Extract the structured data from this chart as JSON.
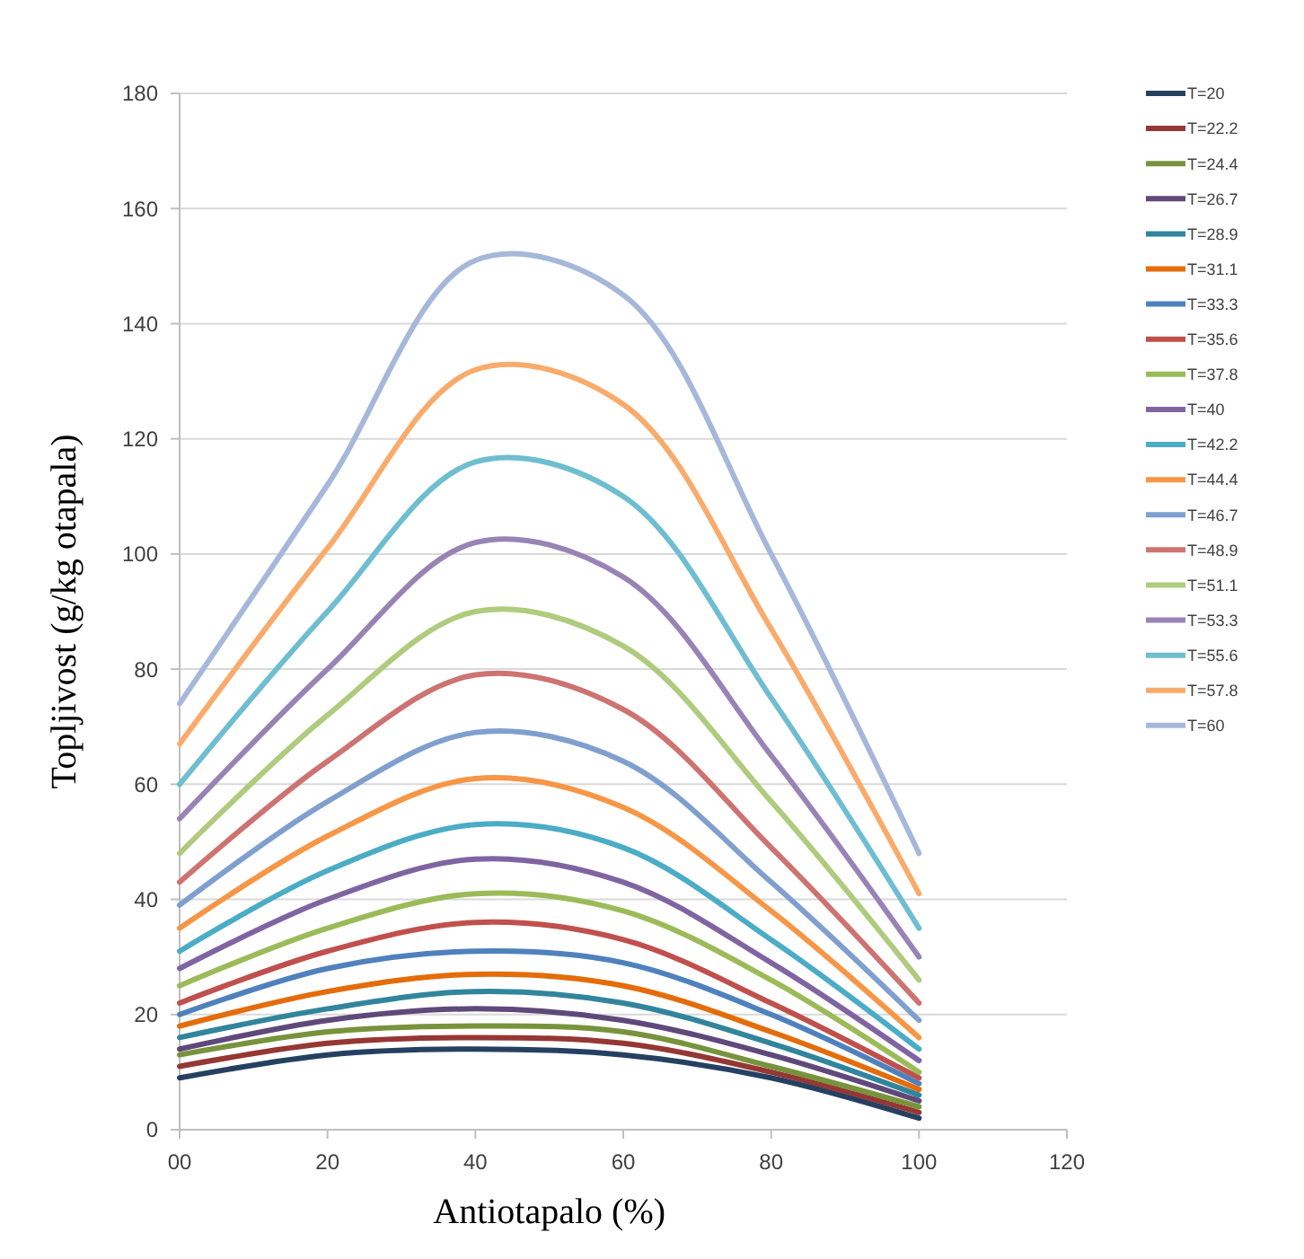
{
  "chart_data": {
    "type": "line",
    "xlabel": "Antiotapalo (%)",
    "ylabel": "Topljivost (g/kg otapala)",
    "x": [
      0,
      20,
      40,
      60,
      80,
      100
    ],
    "xlim": [
      0,
      120
    ],
    "xticks": [
      {
        "value": 0,
        "label": "00"
      },
      20,
      40,
      60,
      80,
      100,
      120
    ],
    "ylim": [
      0,
      180
    ],
    "yticks": [
      0,
      20,
      40,
      60,
      80,
      100,
      120,
      140,
      160,
      180
    ],
    "grid": "y",
    "legend": "right",
    "marker": "none",
    "line_style": "solid",
    "series": [
      {
        "name": "T=20",
        "color": "#254061",
        "values": [
          9,
          13,
          14,
          13,
          9,
          2
        ]
      },
      {
        "name": "T=22.2",
        "color": "#953735",
        "values": [
          11,
          15,
          16,
          15,
          10,
          3
        ]
      },
      {
        "name": "T=24.4",
        "color": "#77933c",
        "values": [
          13,
          17,
          18,
          17,
          11,
          4
        ]
      },
      {
        "name": "T=26.7",
        "color": "#5f497a",
        "values": [
          14,
          19,
          21,
          19,
          13,
          5
        ]
      },
      {
        "name": "T=28.9",
        "color": "#31859c",
        "values": [
          16,
          21,
          24,
          22,
          15,
          6
        ]
      },
      {
        "name": "T=31.1",
        "color": "#e46c0a",
        "values": [
          18,
          24,
          27,
          25,
          17,
          7
        ]
      },
      {
        "name": "T=33.3",
        "color": "#4f81bd",
        "values": [
          20,
          28,
          31,
          29,
          20,
          8
        ]
      },
      {
        "name": "T=35.6",
        "color": "#c0504d",
        "values": [
          22,
          31,
          36,
          33,
          22,
          9
        ]
      },
      {
        "name": "T=37.8",
        "color": "#9bbb59",
        "values": [
          25,
          35,
          41,
          38,
          26,
          10
        ]
      },
      {
        "name": "T=40",
        "color": "#8064a2",
        "values": [
          28,
          40,
          47,
          43,
          29,
          12
        ]
      },
      {
        "name": "T=42.2",
        "color": "#4bacc6",
        "values": [
          31,
          45,
          53,
          49,
          33,
          14
        ]
      },
      {
        "name": "T=44.4",
        "color": "#f79646",
        "values": [
          35,
          51,
          61,
          56,
          38,
          16
        ]
      },
      {
        "name": "T=46.7",
        "color": "#7f9fcf",
        "values": [
          39,
          57,
          69,
          64,
          43,
          19
        ]
      },
      {
        "name": "T=48.9",
        "color": "#cd7371",
        "values": [
          43,
          64,
          79,
          73,
          49,
          22
        ]
      },
      {
        "name": "T=51.1",
        "color": "#afcb7d",
        "values": [
          48,
          72,
          90,
          84,
          57,
          26
        ]
      },
      {
        "name": "T=53.3",
        "color": "#9983b5",
        "values": [
          54,
          80,
          102,
          96,
          65,
          30
        ]
      },
      {
        "name": "T=55.6",
        "color": "#6fbdd1",
        "values": [
          60,
          90,
          116,
          110,
          75,
          35
        ]
      },
      {
        "name": "T=57.8",
        "color": "#f9ab6b",
        "values": [
          67,
          101,
          132,
          126,
          87,
          41
        ]
      },
      {
        "name": "T=60",
        "color": "#a5b8da",
        "values": [
          74,
          112,
          151,
          145,
          100,
          48
        ]
      }
    ]
  }
}
